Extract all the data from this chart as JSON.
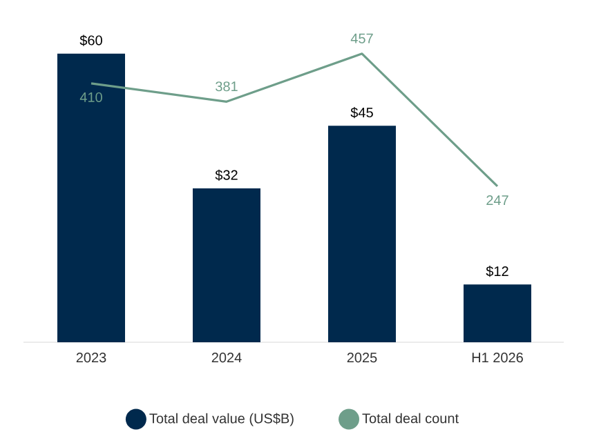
{
  "chart_data": {
    "type": "bar",
    "categories": [
      "2023",
      "2024",
      "2025",
      "H1 2026"
    ],
    "series": [
      {
        "name": "Total deal value (US$B)",
        "color": "#00294d",
        "values": [
          60,
          32,
          45,
          12
        ],
        "value_labels": [
          "$60",
          "$32",
          "$45",
          "$12"
        ]
      },
      {
        "name": "Total deal count",
        "type": "line",
        "axis": "y2",
        "color": "#6e9e8a",
        "values": [
          410,
          381,
          457,
          247
        ],
        "value_labels": [
          "410",
          "381",
          "457",
          "247"
        ]
      }
    ],
    "tick_labels": "x",
    "legend": "bottom"
  }
}
